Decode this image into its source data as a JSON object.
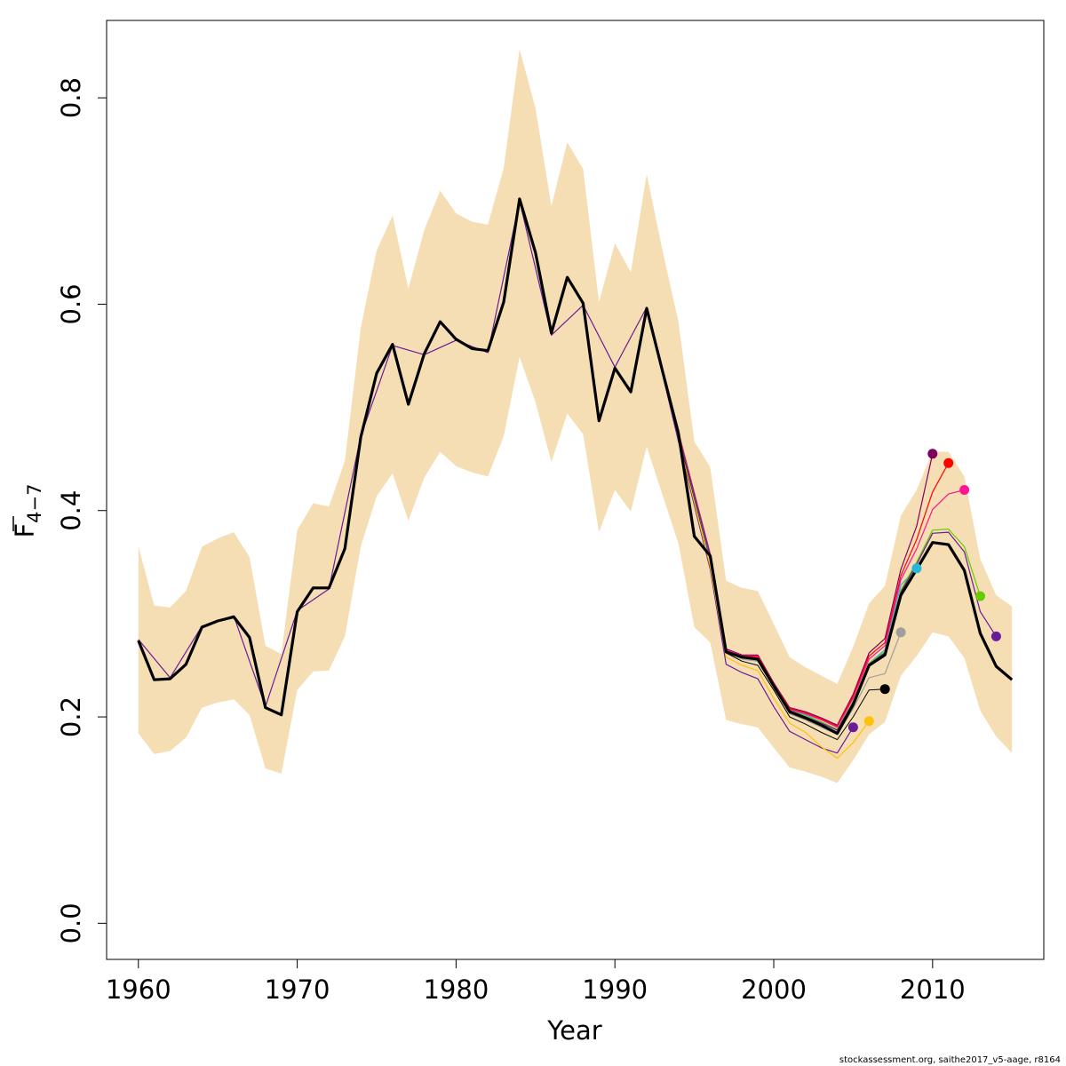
{
  "chart_data": {
    "type": "line",
    "title": "",
    "xlabel": "Year",
    "ylabel": {
      "base": "F",
      "subscript": "4−7",
      "overline": true
    },
    "xlim": [
      1958,
      2017
    ],
    "ylim": [
      -0.035,
      0.875
    ],
    "xticks": [
      "1960",
      "1970",
      "1980",
      "1990",
      "2000",
      "2010"
    ],
    "yticks": [
      "0.0",
      "0.2",
      "0.4",
      "0.6",
      "0.8"
    ],
    "grid": false,
    "legend": "none",
    "band_color": "#f5deb3",
    "band": {
      "x": [
        1960,
        1961,
        1962,
        1963,
        1964,
        1965,
        1966,
        1967,
        1968,
        1969,
        1970,
        1971,
        1972,
        1973,
        1974,
        1975,
        1976,
        1977,
        1978,
        1979,
        1980,
        1981,
        1982,
        1983,
        1984,
        1985,
        1986,
        1987,
        1988,
        1989,
        1990,
        1991,
        1992,
        1993,
        1994,
        1995,
        1996,
        1997,
        1998,
        1999,
        2000,
        2001,
        2002,
        2003,
        2004,
        2005,
        2006,
        2007,
        2008,
        2009,
        2010,
        2011,
        2012,
        2013,
        2014,
        2015
      ],
      "upper": [
        0.365,
        0.308,
        0.306,
        0.322,
        0.365,
        0.373,
        0.379,
        0.355,
        0.269,
        0.261,
        0.381,
        0.407,
        0.404,
        0.448,
        0.577,
        0.652,
        0.686,
        0.615,
        0.672,
        0.71,
        0.688,
        0.68,
        0.677,
        0.732,
        0.847,
        0.79,
        0.695,
        0.757,
        0.731,
        0.602,
        0.659,
        0.631,
        0.726,
        0.652,
        0.583,
        0.467,
        0.442,
        0.332,
        0.325,
        0.322,
        0.29,
        0.258,
        0.248,
        0.24,
        0.232,
        0.268,
        0.31,
        0.327,
        0.395,
        0.42,
        0.457,
        0.457,
        0.433,
        0.353,
        0.318,
        0.307
      ],
      "lower": [
        0.184,
        0.164,
        0.167,
        0.18,
        0.209,
        0.214,
        0.217,
        0.202,
        0.15,
        0.145,
        0.226,
        0.244,
        0.245,
        0.278,
        0.365,
        0.414,
        0.436,
        0.39,
        0.432,
        0.457,
        0.443,
        0.437,
        0.433,
        0.472,
        0.549,
        0.505,
        0.447,
        0.494,
        0.474,
        0.379,
        0.42,
        0.399,
        0.462,
        0.415,
        0.368,
        0.287,
        0.272,
        0.197,
        0.193,
        0.19,
        0.17,
        0.151,
        0.147,
        0.142,
        0.136,
        0.158,
        0.183,
        0.195,
        0.24,
        0.259,
        0.282,
        0.278,
        0.257,
        0.206,
        0.181,
        0.165
      ]
    },
    "series": [
      {
        "color": "#000000",
        "width": 3.2,
        "x": [
          1960,
          1961,
          1962,
          1963,
          1964,
          1965,
          1966,
          1967,
          1968,
          1969,
          1970,
          1971,
          1972,
          1973,
          1974,
          1975,
          1976,
          1977,
          1978,
          1979,
          1980,
          1981,
          1982,
          1983,
          1984,
          1985,
          1986,
          1987,
          1988,
          1989,
          1990,
          1991,
          1992,
          1993,
          1994,
          1995,
          1996,
          1997,
          1998,
          1999,
          2000,
          2001,
          2002,
          2003,
          2004,
          2005,
          2006,
          2007,
          2008,
          2009,
          2010,
          2011,
          2012,
          2013,
          2014,
          2015
        ],
        "y": [
          0.274,
          0.236,
          0.237,
          0.251,
          0.287,
          0.293,
          0.297,
          0.277,
          0.209,
          0.202,
          0.302,
          0.325,
          0.325,
          0.363,
          0.471,
          0.533,
          0.561,
          0.503,
          0.552,
          0.583,
          0.566,
          0.557,
          0.555,
          0.602,
          0.702,
          0.65,
          0.572,
          0.626,
          0.601,
          0.487,
          0.538,
          0.515,
          0.596,
          0.535,
          0.475,
          0.375,
          0.356,
          0.263,
          0.258,
          0.256,
          0.23,
          0.205,
          0.199,
          0.192,
          0.184,
          0.212,
          0.25,
          0.26,
          0.318,
          0.343,
          0.369,
          0.367,
          0.342,
          0.281,
          0.249,
          0.236
        ]
      },
      {
        "color": "#6a1b9a",
        "width": 1.2,
        "x": [
          1960,
          1962,
          1964,
          1966,
          1968,
          1970,
          1972,
          1974,
          1976,
          1978,
          1980,
          1982,
          1984,
          1986,
          1988,
          1990,
          1992,
          1994,
          1996,
          1997,
          1998,
          1999,
          2000,
          2001,
          2002,
          2003,
          2004,
          2005
        ],
        "y": [
          0.275,
          0.238,
          0.288,
          0.298,
          0.21,
          0.303,
          0.324,
          0.472,
          0.56,
          0.551,
          0.565,
          0.553,
          0.7,
          0.57,
          0.599,
          0.539,
          0.597,
          0.467,
          0.343,
          0.251,
          0.243,
          0.237,
          0.21,
          0.186,
          0.178,
          0.17,
          0.165,
          0.19
        ],
        "marker": true
      },
      {
        "color": "#ffc20a",
        "width": 1.2,
        "x": [
          1994,
          1996,
          1997,
          1998,
          1999,
          2000,
          2001,
          2002,
          2003,
          2004,
          2005,
          2006
        ],
        "y": [
          0.47,
          0.346,
          0.258,
          0.25,
          0.245,
          0.218,
          0.194,
          0.185,
          0.171,
          0.16,
          0.175,
          0.196
        ],
        "marker": true
      },
      {
        "color": "#000000",
        "width": 1.0,
        "x": [
          1994,
          1996,
          1997,
          1998,
          1999,
          2000,
          2001,
          2002,
          2003,
          2004,
          2005,
          2006,
          2007
        ],
        "y": [
          0.472,
          0.352,
          0.262,
          0.254,
          0.25,
          0.226,
          0.2,
          0.193,
          0.185,
          0.178,
          0.2,
          0.226,
          0.227
        ],
        "marker": true
      },
      {
        "color": "#9e9e9e",
        "width": 1.2,
        "x": [
          1994,
          1996,
          1997,
          1998,
          1999,
          2000,
          2001,
          2002,
          2003,
          2004,
          2005,
          2006,
          2007,
          2008
        ],
        "y": [
          0.474,
          0.354,
          0.263,
          0.256,
          0.254,
          0.229,
          0.203,
          0.197,
          0.19,
          0.183,
          0.208,
          0.238,
          0.242,
          0.282
        ],
        "marker": true
      },
      {
        "color": "#29b6d8",
        "width": 1.2,
        "x": [
          1994,
          1996,
          1997,
          1998,
          1999,
          2000,
          2001,
          2002,
          2003,
          2004,
          2005,
          2006,
          2007,
          2008,
          2009
        ],
        "y": [
          0.475,
          0.356,
          0.264,
          0.258,
          0.257,
          0.231,
          0.206,
          0.202,
          0.195,
          0.188,
          0.215,
          0.252,
          0.265,
          0.328,
          0.344
        ],
        "marker": true
      },
      {
        "color": "#800060",
        "width": 1.2,
        "x": [
          1994,
          1996,
          1997,
          1998,
          1999,
          2000,
          2001,
          2002,
          2003,
          2004,
          2005,
          2006,
          2007,
          2008,
          2009,
          2010
        ],
        "y": [
          0.476,
          0.358,
          0.266,
          0.26,
          0.26,
          0.233,
          0.209,
          0.205,
          0.199,
          0.192,
          0.222,
          0.262,
          0.276,
          0.343,
          0.385,
          0.455
        ],
        "marker": true
      },
      {
        "color": "#ff0000",
        "width": 1.2,
        "x": [
          1994,
          1996,
          1997,
          1998,
          1999,
          2000,
          2001,
          2002,
          2003,
          2004,
          2005,
          2006,
          2007,
          2008,
          2009,
          2010,
          2011
        ],
        "y": [
          0.476,
          0.357,
          0.265,
          0.259,
          0.259,
          0.232,
          0.208,
          0.204,
          0.198,
          0.191,
          0.22,
          0.259,
          0.272,
          0.337,
          0.372,
          0.418,
          0.446
        ],
        "marker": true
      },
      {
        "color": "#ff1493",
        "width": 1.2,
        "x": [
          1994,
          1996,
          1997,
          1998,
          1999,
          2000,
          2001,
          2002,
          2003,
          2004,
          2005,
          2006,
          2007,
          2008,
          2009,
          2010,
          2011,
          2012
        ],
        "y": [
          0.475,
          0.357,
          0.265,
          0.259,
          0.258,
          0.232,
          0.207,
          0.203,
          0.197,
          0.19,
          0.218,
          0.256,
          0.269,
          0.333,
          0.363,
          0.401,
          0.416,
          0.42
        ],
        "marker": true
      },
      {
        "color": "#66cc00",
        "width": 1.2,
        "x": [
          1994,
          1996,
          1997,
          1998,
          1999,
          2000,
          2001,
          2002,
          2003,
          2004,
          2005,
          2006,
          2007,
          2008,
          2009,
          2010,
          2011,
          2012,
          2013
        ],
        "y": [
          0.474,
          0.356,
          0.264,
          0.258,
          0.257,
          0.231,
          0.206,
          0.201,
          0.195,
          0.188,
          0.215,
          0.252,
          0.263,
          0.323,
          0.35,
          0.381,
          0.382,
          0.365,
          0.317
        ],
        "marker": true
      },
      {
        "color": "#6a1b9a",
        "width": 1.2,
        "x": [
          1994,
          1996,
          1997,
          1998,
          1999,
          2000,
          2001,
          2002,
          2003,
          2004,
          2005,
          2006,
          2007,
          2008,
          2009,
          2010,
          2011,
          2012,
          2013,
          2014
        ],
        "y": [
          0.474,
          0.356,
          0.264,
          0.258,
          0.256,
          0.231,
          0.206,
          0.2,
          0.194,
          0.187,
          0.214,
          0.251,
          0.262,
          0.321,
          0.348,
          0.378,
          0.379,
          0.36,
          0.302,
          0.278
        ],
        "marker": true
      }
    ]
  },
  "footer": {
    "note": "stockassessment.org, saithe2017_v5-aage, r8164"
  }
}
